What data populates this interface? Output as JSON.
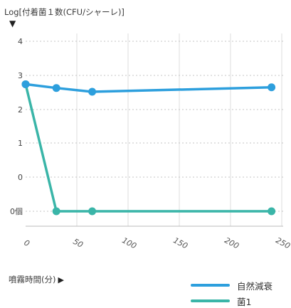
{
  "chart_data": {
    "type": "line",
    "ylabel": "Log[付着菌１数(CFU/シャーレ)]",
    "xlabel": "噴霧時間(分)",
    "y_ticks": [
      "4",
      "3",
      "2",
      "1",
      "0",
      "0個"
    ],
    "x_ticks": [
      "0",
      "50",
      "100",
      "150",
      "200",
      "250"
    ],
    "xlim": [
      0,
      250
    ],
    "grid": "vertical",
    "legend_position": "bottom-right",
    "series": [
      {
        "name": "自然減衰",
        "color": "#2d9fdd",
        "x": [
          0,
          30,
          65,
          240
        ],
        "y": [
          2.72,
          2.61,
          2.5,
          2.63
        ]
      },
      {
        "name": "菌1",
        "color": "#3ab5a8",
        "x": [
          0,
          30,
          65,
          240
        ],
        "y": [
          2.72,
          "0個",
          "0個",
          "0個"
        ]
      }
    ]
  }
}
